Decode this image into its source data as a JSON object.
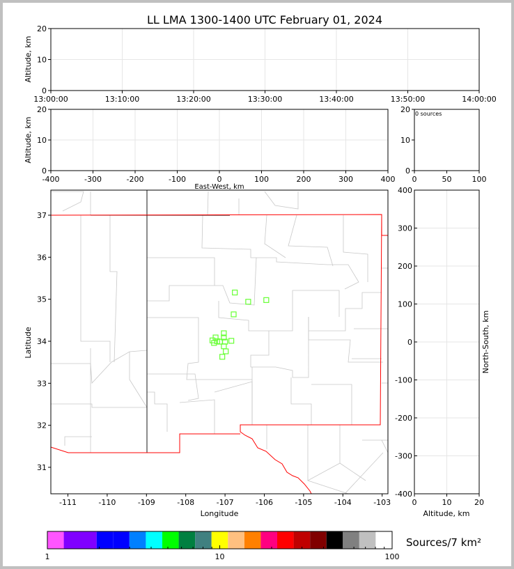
{
  "chart_data": {
    "title": "LL LMA 1300-1400 UTC February 01, 2024",
    "time_altitude": {
      "type": "scatter",
      "ylabel": "Altitude, km",
      "ylim": [
        0,
        20
      ],
      "yticks": [
        "0",
        "10",
        "20"
      ],
      "xticks": [
        "13:00:00",
        "13:10:00",
        "13:20:00",
        "13:30:00",
        "13:40:00",
        "13:50:00",
        "14:00:00"
      ],
      "grid": true,
      "points": []
    },
    "ew_altitude": {
      "type": "scatter",
      "xlabel": "East-West, km",
      "ylabel": "Altitude, km",
      "xlim": [
        -400,
        400
      ],
      "ylim": [
        0,
        20
      ],
      "xticks": [
        "-400",
        "-300",
        "-200",
        "-100",
        "0",
        "100",
        "200",
        "300",
        "400"
      ],
      "yticks": [
        "0",
        "10",
        "20"
      ],
      "grid": true,
      "points": []
    },
    "histogram": {
      "type": "bar",
      "annotation": "0 sources",
      "xlim": [
        0,
        100
      ],
      "ylim": [
        0,
        20
      ],
      "xticks": [
        "0",
        "50",
        "100"
      ],
      "yticks": [
        "0",
        "10",
        "20"
      ]
    },
    "plan_view": {
      "type": "scatter",
      "xlabel": "Longitude",
      "ylabel": "Latitude",
      "xlim": [
        -111.43,
        -102.86
      ],
      "ylim": [
        30.37,
        37.6
      ],
      "xticks": [
        "-111",
        "-110",
        "-109",
        "-108",
        "-107",
        "-106",
        "-105",
        "-104",
        "-103"
      ],
      "yticks": [
        "31",
        "32",
        "33",
        "34",
        "35",
        "36",
        "37"
      ],
      "marker": "open-square",
      "marker_color": "#66ff33",
      "points": [
        {
          "lon": -106.75,
          "lat": 35.16
        },
        {
          "lon": -106.41,
          "lat": 34.94
        },
        {
          "lon": -105.95,
          "lat": 34.98
        },
        {
          "lon": -106.78,
          "lat": 34.64
        },
        {
          "lon": -107.03,
          "lat": 34.19
        },
        {
          "lon": -107.24,
          "lat": 34.09
        },
        {
          "lon": -107.03,
          "lat": 34.09
        },
        {
          "lon": -107.32,
          "lat": 34.02
        },
        {
          "lon": -107.28,
          "lat": 33.96
        },
        {
          "lon": -107.2,
          "lat": 34.0
        },
        {
          "lon": -107.13,
          "lat": 33.99
        },
        {
          "lon": -107.0,
          "lat": 33.99
        },
        {
          "lon": -106.84,
          "lat": 34.01
        },
        {
          "lon": -107.03,
          "lat": 33.88
        },
        {
          "lon": -106.98,
          "lat": 33.76
        },
        {
          "lon": -107.07,
          "lat": 33.63
        }
      ],
      "state_border_color": "#000000",
      "region_outline_color": "#ff0000",
      "county_line_color": "#c8c8c8"
    },
    "altitude_ns": {
      "type": "scatter",
      "xlabel": "Altitude, km",
      "ylabel": "North-South, km",
      "xlim": [
        0,
        20
      ],
      "ylim": [
        -400,
        400
      ],
      "xticks": [
        "0",
        "10",
        "20"
      ],
      "yticks": [
        "400",
        "300",
        "200",
        "100",
        "0",
        "-100",
        "-200",
        "-300",
        "-400"
      ],
      "grid": true,
      "points": []
    },
    "colorbar": {
      "label": "Sources/7 km²",
      "scale": "log",
      "range": [
        1,
        100
      ],
      "tick_labels": [
        "1",
        "10",
        "100"
      ],
      "colors": [
        "#ff55ff",
        "#8000ff",
        "#0000ff",
        "#0000ff",
        "#0080ff",
        "#00ffff",
        "#00ff00",
        "#008040",
        "#408080",
        "#ffff00",
        "#ffc080",
        "#ff8000",
        "#ff0080",
        "#ff0000",
        "#c00000",
        "#800000",
        "#000000",
        "#808080",
        "#c0c0c0",
        "#ffffff"
      ]
    }
  }
}
